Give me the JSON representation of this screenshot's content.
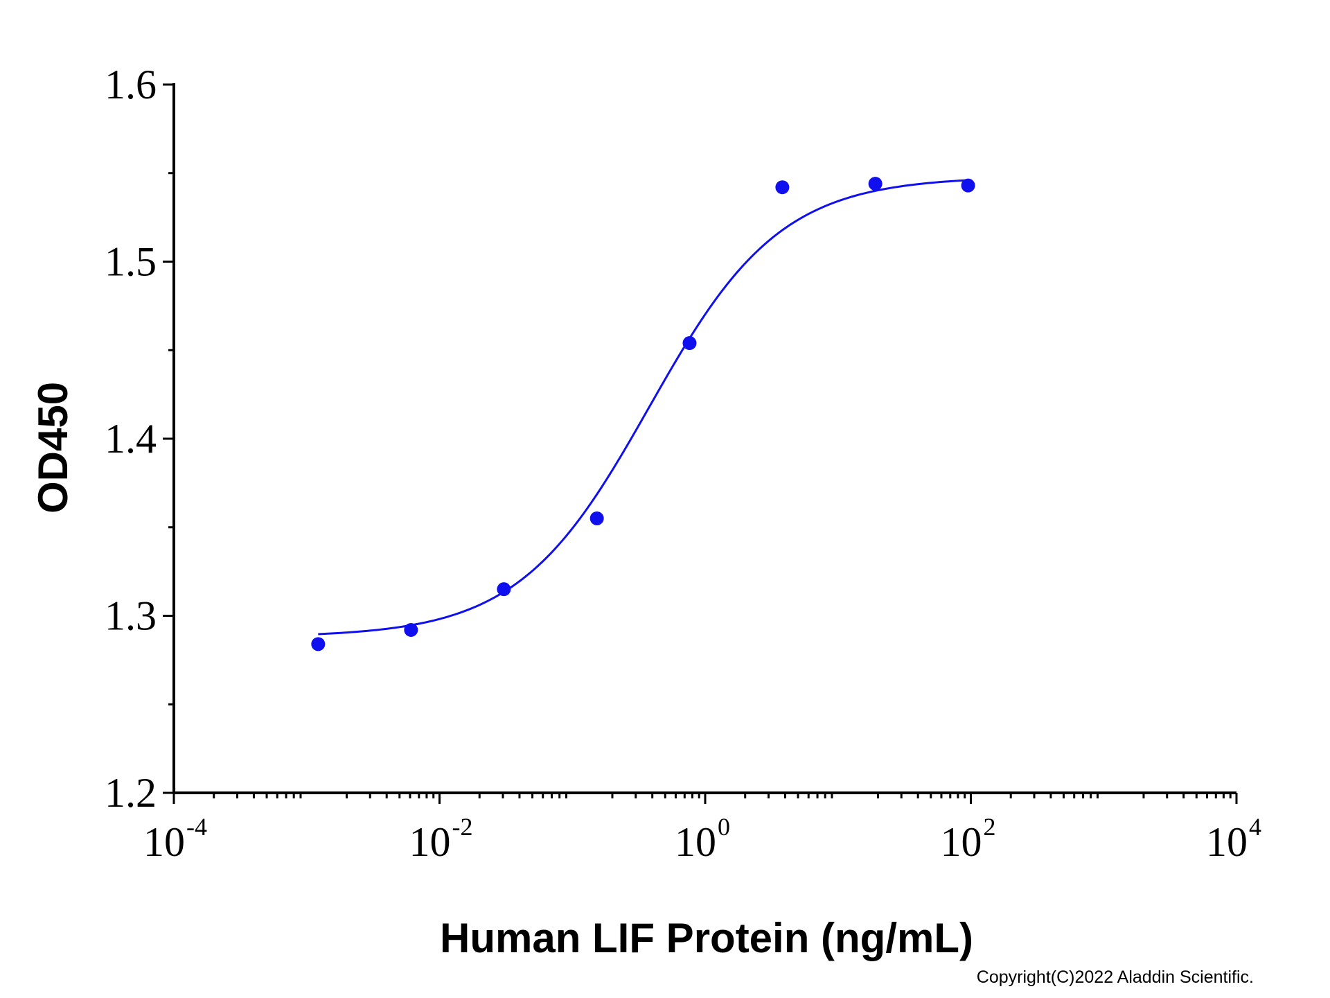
{
  "chart_data": {
    "type": "scatter",
    "xlabel": "Human LIF Protein (ng/mL)",
    "ylabel": "OD450",
    "x_scale": "log",
    "xlim": [
      0.0001,
      10000
    ],
    "ylim": [
      1.2,
      1.6
    ],
    "x_ticks": [
      {
        "base": "10",
        "exp": "-4",
        "value": 0.0001
      },
      {
        "base": "10",
        "exp": "-2",
        "value": 0.01
      },
      {
        "base": "10",
        "exp": "0",
        "value": 1
      },
      {
        "base": "10",
        "exp": "2",
        "value": 100
      },
      {
        "base": "10",
        "exp": "4",
        "value": 10000
      }
    ],
    "y_ticks": [
      {
        "label": "1.2",
        "value": 1.2
      },
      {
        "label": "1.3",
        "value": 1.3
      },
      {
        "label": "1.4",
        "value": 1.4
      },
      {
        "label": "1.5",
        "value": 1.5
      },
      {
        "label": "1.6",
        "value": 1.6
      }
    ],
    "grid": false,
    "color": "#1010ee",
    "series": [
      {
        "points": [
          {
            "x": 0.00122,
            "y": 1.284
          },
          {
            "x": 0.0061,
            "y": 1.292
          },
          {
            "x": 0.0305,
            "y": 1.315
          },
          {
            "x": 0.153,
            "y": 1.355
          },
          {
            "x": 0.763,
            "y": 1.454
          },
          {
            "x": 3.81,
            "y": 1.542
          },
          {
            "x": 19.1,
            "y": 1.544
          },
          {
            "x": 95.4,
            "y": 1.543
          }
        ],
        "fit": {
          "model": "4PL",
          "bottom": 1.288,
          "top": 1.548,
          "ec50": 0.38,
          "hill": 0.88,
          "x_range": [
            0.00122,
            95.4
          ]
        }
      }
    ]
  },
  "copyright": "Copyright(C)2022 Aladdin Scientific."
}
